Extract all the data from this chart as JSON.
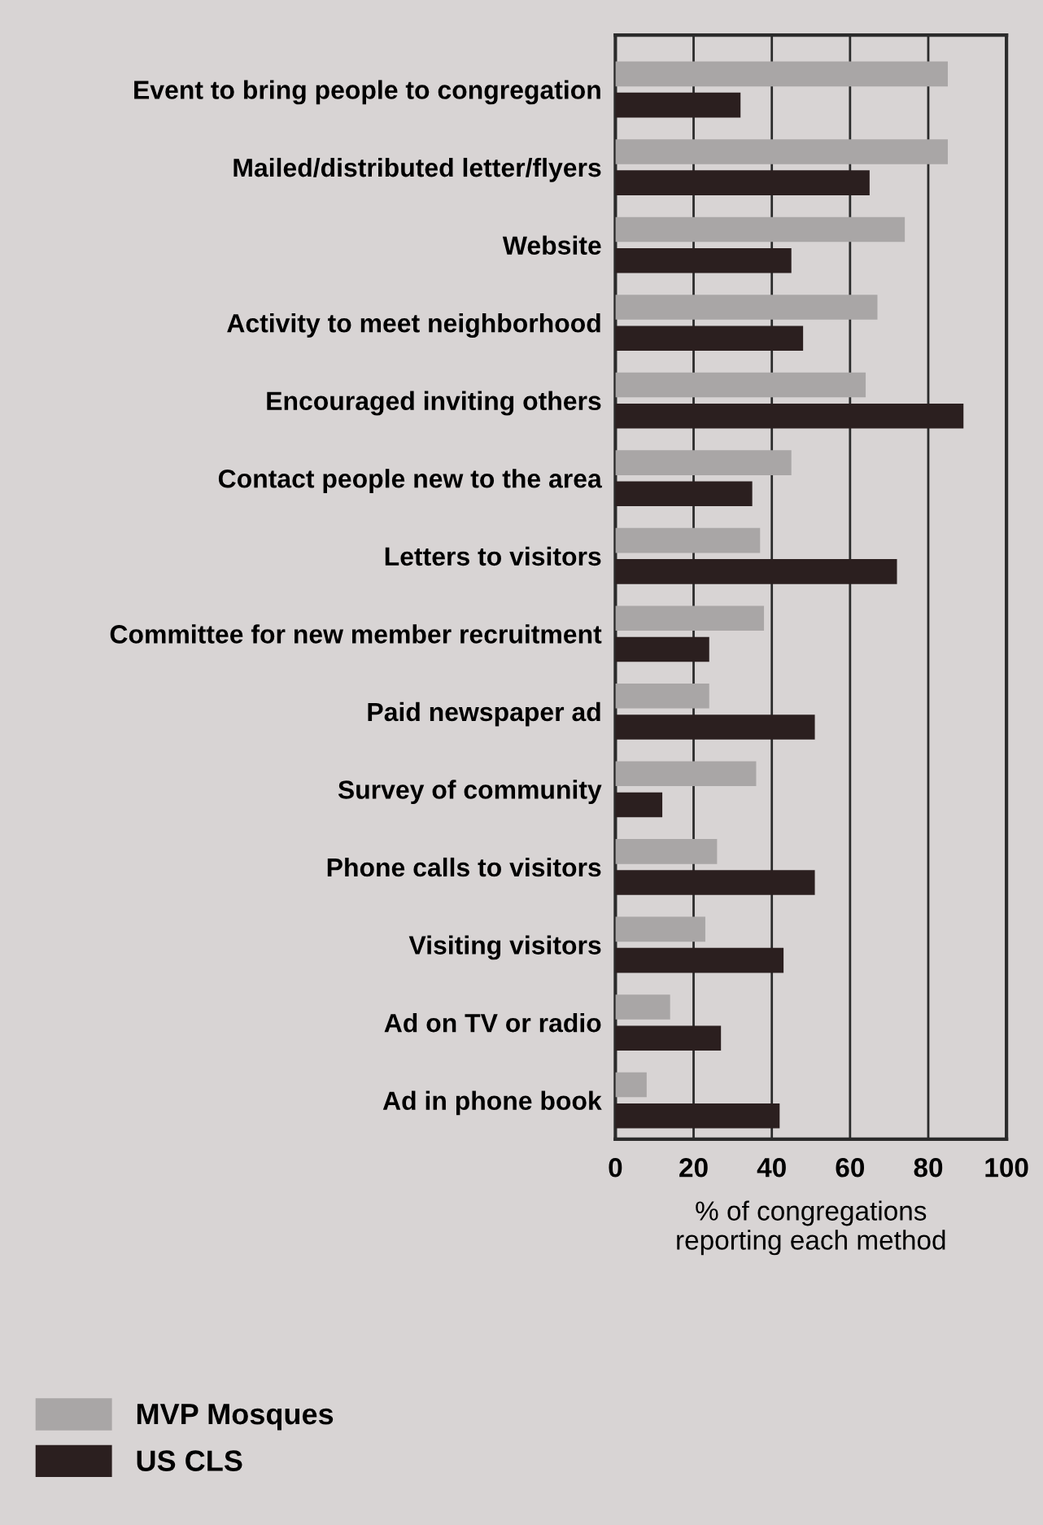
{
  "chart_data": {
    "type": "bar",
    "orientation": "horizontal",
    "xlabel": "% of congregations\nreporting each method",
    "categories": [
      "Event to bring people to congregation",
      "Mailed/distributed letter/flyers",
      "Website",
      "Activity to meet neighborhood",
      "Encouraged inviting others",
      "Contact people new to the area",
      "Letters to visitors",
      "Committee for new member recruitment",
      "Paid newspaper ad",
      "Survey of community",
      "Phone calls to visitors",
      "Visiting visitors",
      "Ad on TV or radio",
      "Ad in phone book"
    ],
    "series": [
      {
        "name": "MVP Mosques",
        "color": "#a9a6a6",
        "values": [
          85,
          85,
          74,
          67,
          64,
          45,
          37,
          38,
          24,
          36,
          26,
          23,
          14,
          8
        ]
      },
      {
        "name": "US CLS",
        "color": "#2b1f1f",
        "values": [
          32,
          65,
          45,
          48,
          89,
          35,
          72,
          24,
          51,
          12,
          51,
          43,
          27,
          42
        ]
      }
    ],
    "xlim": [
      0,
      100
    ],
    "xticks": [
      0,
      20,
      40,
      60,
      80,
      100
    ],
    "grid": "x",
    "legend": "bottom left"
  }
}
